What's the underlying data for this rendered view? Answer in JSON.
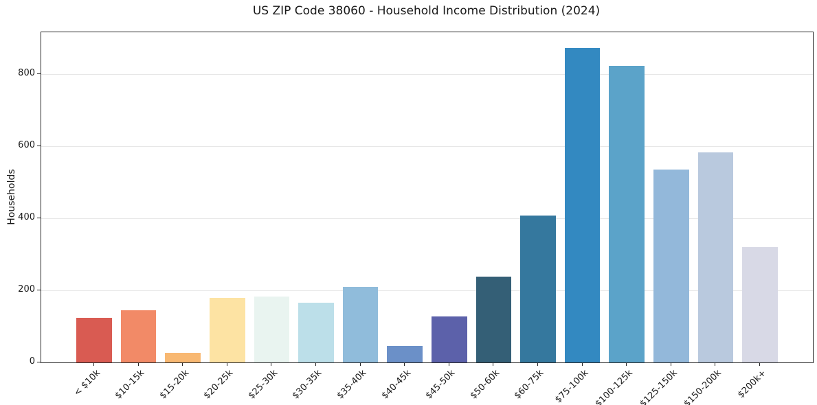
{
  "chart_data": {
    "type": "bar",
    "title": "US ZIP Code 38060 - Household Income Distribution (2024)",
    "xlabel": "",
    "ylabel": "Households",
    "categories": [
      "< $10k",
      "$10-15k",
      "$15-20k",
      "$20-25k",
      "$25-30k",
      "$30-35k",
      "$35-40k",
      "$40-45k",
      "$45-50k",
      "$50-60k",
      "$60-75k",
      "$75-100k",
      "$100-125k",
      "$125-150k",
      "$150-200k",
      "$200k+"
    ],
    "values": [
      124,
      145,
      27,
      179,
      182,
      165,
      210,
      45,
      128,
      238,
      408,
      872,
      823,
      535,
      583,
      320
    ],
    "bar_colors": [
      "#d95b52",
      "#f28a67",
      "#f8b872",
      "#fde3a3",
      "#e9f4f0",
      "#bcdfe9",
      "#90bcdb",
      "#6b90c8",
      "#5c61aa",
      "#345f76",
      "#35789e",
      "#3389c1",
      "#5ba3c9",
      "#93b8da",
      "#b9c9de",
      "#d8d9e6"
    ],
    "yticks": [
      0,
      200,
      400,
      600,
      800
    ],
    "ylim": [
      0,
      916
    ],
    "grid": "horizontal",
    "legend": "none",
    "colors": {
      "background": "#ffffff",
      "spine": "#262626",
      "gridline": "#e7e7e7",
      "text": "#1a1a1a"
    }
  }
}
